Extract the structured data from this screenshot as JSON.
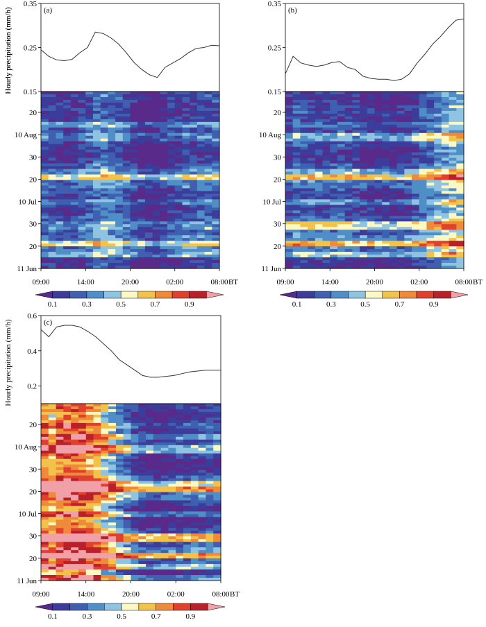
{
  "figure": {
    "ylabel": "Hourly precipitation (mm/h)",
    "x_ticks": [
      "09:00",
      "14:00",
      "20:00",
      "02:00",
      "08:00"
    ],
    "x_unit": "BT",
    "y_ticks_lower": [
      "11 Jun",
      "20",
      "30",
      "10 Jul",
      "20",
      "30",
      "10 Aug",
      "20"
    ],
    "colorbar": {
      "labels": [
        "0.1",
        "0.3",
        "0.5",
        "0.7",
        "0.9"
      ],
      "colors": [
        "#5a2a8a",
        "#3c3c9a",
        "#3f5fb0",
        "#4f8ec6",
        "#8fc3e2",
        "#fbf8c4",
        "#f3c24a",
        "#ee8a3a",
        "#e2402f",
        "#b8202a",
        "#f2a0a8"
      ]
    }
  },
  "chart_data": [
    {
      "type": "line",
      "panel": "(a)",
      "ylim": [
        0.15,
        0.35
      ],
      "yticks": [
        "0.15",
        "0.25",
        "0.35"
      ],
      "x": [
        0,
        1,
        2,
        3,
        4,
        5,
        6,
        7,
        8,
        9,
        10,
        11,
        12,
        13,
        14,
        15,
        16,
        17,
        18,
        19,
        20,
        21,
        22,
        23
      ],
      "values": [
        0.245,
        0.23,
        0.222,
        0.22,
        0.223,
        0.238,
        0.25,
        0.285,
        0.282,
        0.272,
        0.258,
        0.238,
        0.216,
        0.2,
        0.188,
        0.182,
        0.205,
        0.215,
        0.225,
        0.238,
        0.248,
        0.25,
        0.255,
        0.254
      ],
      "heatmap_profile": [
        0.18,
        0.15,
        0.16,
        0.12,
        0.16,
        0.35,
        0.2,
        0.3,
        0.14,
        0.12,
        0.1,
        0.14,
        0.22,
        0.32,
        0.55,
        0.3,
        0.2,
        0.15,
        0.3,
        0.16,
        0.18,
        0.22,
        0.35,
        0.25,
        0.3,
        0.55,
        0.32,
        0.4,
        0.12,
        0.13
      ]
    },
    {
      "type": "line",
      "panel": "(b)",
      "ylim": [
        0.15,
        0.35
      ],
      "yticks": [
        "0.15",
        "0.25",
        "0.35"
      ],
      "x": [
        0,
        1,
        2,
        3,
        4,
        5,
        6,
        7,
        8,
        9,
        10,
        11,
        12,
        13,
        14,
        15,
        16,
        17,
        18,
        19,
        20,
        21,
        22,
        23
      ],
      "values": [
        0.19,
        0.23,
        0.215,
        0.21,
        0.207,
        0.21,
        0.216,
        0.218,
        0.205,
        0.2,
        0.185,
        0.18,
        0.178,
        0.178,
        0.175,
        0.178,
        0.19,
        0.215,
        0.235,
        0.258,
        0.275,
        0.295,
        0.312,
        0.315
      ],
      "heatmap_profile": [
        0.18,
        0.15,
        0.2,
        0.22,
        0.18,
        0.3,
        0.2,
        0.45,
        0.25,
        0.18,
        0.14,
        0.16,
        0.25,
        0.45,
        0.7,
        0.35,
        0.25,
        0.2,
        0.4,
        0.2,
        0.22,
        0.3,
        0.6,
        0.3,
        0.4,
        0.7,
        0.35,
        0.5,
        0.15,
        0.16
      ]
    },
    {
      "type": "line",
      "panel": "(c)",
      "ylim": [
        0.1,
        0.6
      ],
      "yticks": [
        "0.2",
        "0.4",
        "0.6"
      ],
      "x": [
        0,
        1,
        2,
        3,
        4,
        5,
        6,
        7,
        8,
        9,
        10,
        11,
        12,
        13,
        14,
        15,
        16,
        17,
        18,
        19,
        20,
        21,
        22,
        23
      ],
      "values": [
        0.52,
        0.48,
        0.535,
        0.545,
        0.545,
        0.535,
        0.51,
        0.48,
        0.44,
        0.4,
        0.35,
        0.32,
        0.29,
        0.26,
        0.25,
        0.25,
        0.255,
        0.26,
        0.27,
        0.28,
        0.285,
        0.29,
        0.29,
        0.29
      ],
      "heatmap_profile": [
        0.4,
        0.3,
        0.35,
        0.5,
        0.4,
        0.6,
        0.45,
        0.7,
        0.4,
        0.3,
        0.3,
        0.35,
        0.5,
        0.8,
        0.95,
        0.55,
        0.4,
        0.3,
        0.55,
        0.3,
        0.35,
        0.45,
        0.9,
        0.5,
        0.6,
        0.95,
        0.5,
        0.7,
        0.3,
        0.6
      ]
    }
  ]
}
